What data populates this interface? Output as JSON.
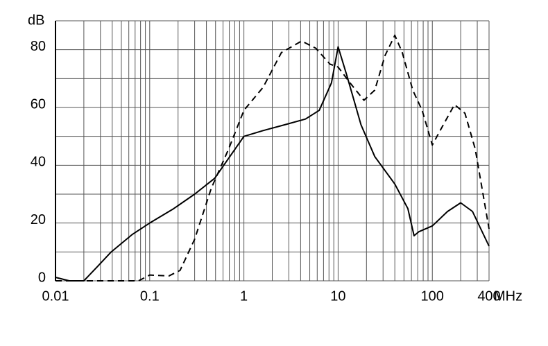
{
  "chart_data": {
    "type": "line",
    "y_label": "dB",
    "x_label": "MHz",
    "x_log": true,
    "xlim": [
      0.01,
      400
    ],
    "ylim": [
      0,
      90
    ],
    "xticks": [
      0.01,
      0.1,
      1,
      10,
      100,
      400
    ],
    "yticks": [
      0,
      20,
      40,
      60,
      80
    ],
    "x_grid": [
      0.01,
      0.02,
      0.03,
      0.04,
      0.05,
      0.06,
      0.07,
      0.08,
      0.09,
      0.1,
      0.2,
      0.3,
      0.4,
      0.5,
      0.6,
      0.7,
      0.8,
      0.9,
      1,
      2,
      3,
      4,
      5,
      6,
      7,
      8,
      9,
      10,
      20,
      30,
      40,
      50,
      60,
      70,
      80,
      90,
      100,
      200,
      300,
      400
    ],
    "y_grid": [
      0,
      10,
      20,
      30,
      40,
      50,
      60,
      70,
      80,
      90
    ],
    "series": [
      {
        "color": "#000000",
        "dash": "solid",
        "x": [
          0.01,
          0.014,
          0.02,
          0.028,
          0.039,
          0.065,
          0.1,
          0.18,
          0.3,
          0.49,
          1,
          1.6,
          2.7,
          4.5,
          6.3,
          8.5,
          10,
          12.4,
          17.5,
          24.5,
          40,
          55,
          64,
          72,
          100,
          145,
          200,
          267,
          400
        ],
        "values": [
          1.2,
          0,
          0,
          5,
          10,
          16,
          20,
          25,
          30,
          35.5,
          50,
          52,
          54,
          56,
          59,
          68.5,
          81,
          71,
          54,
          43,
          33.5,
          25,
          15.6,
          17,
          19,
          24,
          27,
          24,
          12
        ]
      },
      {
        "color": "#000000",
        "dash": "dashed",
        "x": [
          0.01,
          0.076,
          0.1,
          0.16,
          0.21,
          0.3,
          0.45,
          0.69,
          1,
          1.6,
          2.5,
          4.1,
          5.8,
          8.2,
          10,
          13.4,
          18.8,
          24.5,
          31.5,
          40,
          48,
          62,
          78,
          100,
          121,
          172,
          222,
          285,
          400
        ],
        "values": [
          0,
          0,
          2,
          1.7,
          3.6,
          14.4,
          32,
          45.7,
          59,
          67,
          79,
          83,
          80.5,
          75,
          74,
          68.5,
          62.5,
          66,
          78,
          85,
          79,
          66,
          59,
          47,
          52,
          61,
          58,
          45.7,
          18
        ]
      }
    ]
  }
}
